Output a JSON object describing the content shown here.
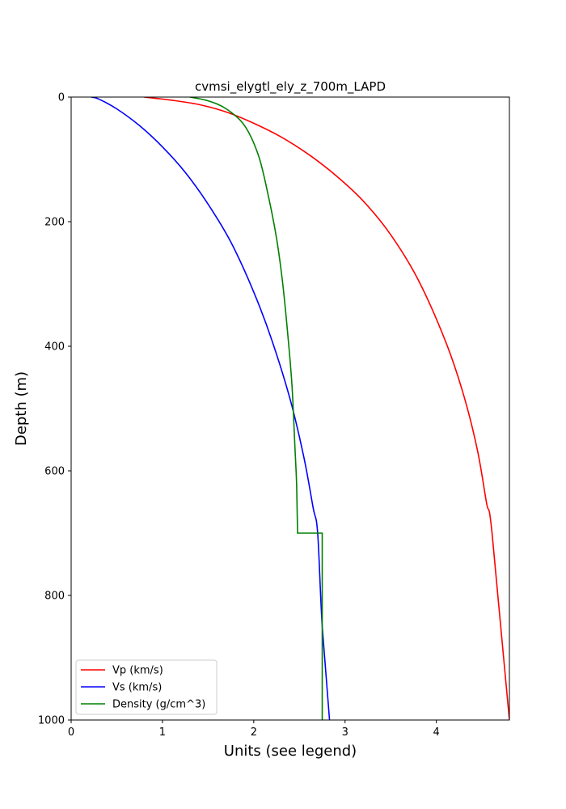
{
  "chart_data": {
    "type": "line",
    "title": "cvmsi_elygtl_ely_z_700m_LAPD",
    "xlabel": "Units (see legend)",
    "ylabel": "Depth (m)",
    "xlim": [
      0,
      4.8
    ],
    "ylim": [
      1000,
      0
    ],
    "y_inverted": true,
    "xticks": [
      0,
      1,
      2,
      3,
      4
    ],
    "yticks": [
      0,
      200,
      400,
      600,
      800,
      1000
    ],
    "grid": false,
    "legend_position": "lower-left",
    "series": [
      {
        "name": "Vp (km/s)",
        "color": "#ff0000",
        "points": [
          [
            0.8,
            0
          ],
          [
            1.1,
            5
          ],
          [
            1.4,
            12
          ],
          [
            1.7,
            24
          ],
          [
            2.0,
            42
          ],
          [
            2.3,
            64
          ],
          [
            2.6,
            92
          ],
          [
            2.9,
            126
          ],
          [
            3.2,
            167
          ],
          [
            3.5,
            221
          ],
          [
            3.8,
            293
          ],
          [
            4.1,
            392
          ],
          [
            4.3,
            479
          ],
          [
            4.45,
            567
          ],
          [
            4.55,
            652
          ],
          [
            4.61,
            700
          ],
          [
            4.8,
            1000
          ]
        ]
      },
      {
        "name": "Vs (km/s)",
        "color": "#0000ff",
        "points": [
          [
            0.22,
            0
          ],
          [
            0.3,
            3
          ],
          [
            0.5,
            19
          ],
          [
            0.75,
            46
          ],
          [
            1.0,
            80
          ],
          [
            1.25,
            121
          ],
          [
            1.5,
            172
          ],
          [
            1.75,
            233
          ],
          [
            2.0,
            313
          ],
          [
            2.2,
            391
          ],
          [
            2.4,
            486
          ],
          [
            2.55,
            579
          ],
          [
            2.65,
            659
          ],
          [
            2.7,
            700
          ],
          [
            2.75,
            850
          ],
          [
            2.83,
            1000
          ]
        ]
      },
      {
        "name": "Density (g/cm^3)",
        "color": "#008000",
        "points": [
          [
            1.3,
            0
          ],
          [
            1.5,
            6
          ],
          [
            1.7,
            19
          ],
          [
            1.9,
            46
          ],
          [
            2.05,
            93
          ],
          [
            2.15,
            152
          ],
          [
            2.25,
            227
          ],
          [
            2.32,
            303
          ],
          [
            2.38,
            393
          ],
          [
            2.42,
            466
          ],
          [
            2.45,
            559
          ],
          [
            2.47,
            624
          ],
          [
            2.48,
            700
          ],
          [
            2.75,
            700
          ],
          [
            2.75,
            1000
          ]
        ]
      }
    ]
  }
}
